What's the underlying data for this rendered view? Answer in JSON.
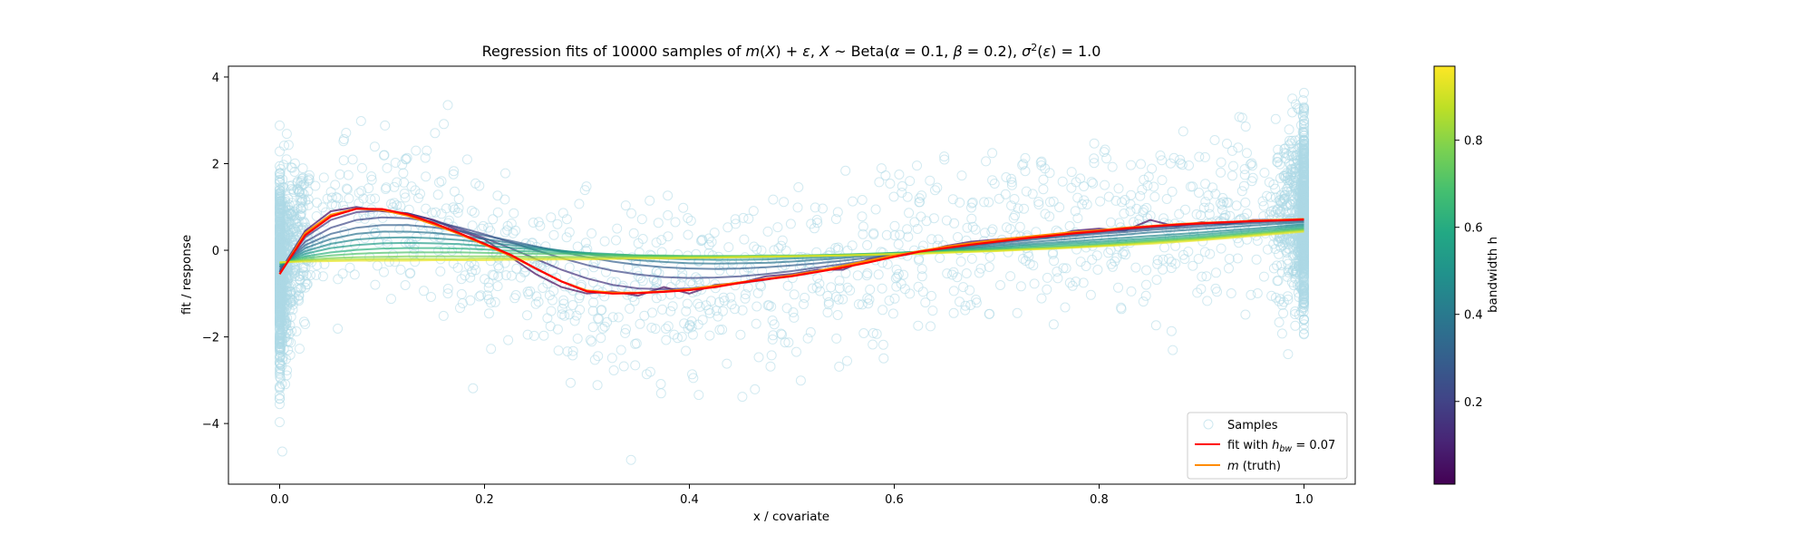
{
  "chart_data": {
    "type": "scatter",
    "title_parts": {
      "t1": "Regression fits of 10000 samples of ",
      "t2": "m",
      "t3": "(",
      "t4": "X",
      "t5": ") + ",
      "t6": "ε",
      "t7": ", ",
      "t8": "X",
      "t9": " ~ Beta(",
      "t10": "α",
      "t11": " = 0.1, ",
      "t12": "β",
      "t13": " = 0.2), ",
      "t14": "σ",
      "t15": "2",
      "t16": "(",
      "t17": "ε",
      "t18": ") = 1.0"
    },
    "xlabel": "x / covariate",
    "ylabel": "fit / response",
    "xlim": [
      -0.05,
      1.05
    ],
    "ylim": [
      -5.4,
      4.25
    ],
    "xticks": [
      0.0,
      0.2,
      0.4,
      0.6,
      0.8,
      1.0
    ],
    "xtick_labels": [
      "0.0",
      "0.2",
      "0.4",
      "0.6",
      "0.8",
      "1.0"
    ],
    "yticks": [
      -4,
      -2,
      0,
      2,
      4
    ],
    "ytick_labels": [
      "−4",
      "−2",
      "0",
      "2",
      "4"
    ],
    "grid": false,
    "legend_position": "lower-right",
    "legend": {
      "samples": "Samples",
      "fit_prefix": "fit with ",
      "fit_h": "h",
      "fit_sub": "bw",
      "fit_suffix": " = 0.07",
      "truth_m": "m",
      "truth_suffix": " (truth)"
    },
    "colorbar": {
      "label": "bandwidth h",
      "colormap": "viridis",
      "range": [
        0.01,
        0.97
      ],
      "ticks": [
        0.2,
        0.4,
        0.6,
        0.8
      ],
      "tick_labels": [
        "0.2",
        "0.4",
        "0.6",
        "0.8"
      ]
    },
    "samples": {
      "count": 10000,
      "distribution": "Beta(0.1, 0.2)",
      "noise_sigma": 1.0,
      "color": "#add8e6"
    },
    "truth": {
      "color": "#ff8c00",
      "x": [
        0.0,
        0.025,
        0.05,
        0.075,
        0.1,
        0.125,
        0.15,
        0.175,
        0.2,
        0.225,
        0.25,
        0.275,
        0.3,
        0.325,
        0.35,
        0.375,
        0.4,
        0.425,
        0.45,
        0.475,
        0.5,
        0.525,
        0.55,
        0.575,
        0.6,
        0.625,
        0.65,
        0.675,
        0.7,
        0.725,
        0.75,
        0.775,
        0.8,
        0.825,
        0.85,
        0.875,
        0.9,
        0.925,
        0.95,
        0.975,
        1.0
      ],
      "y": [
        -0.55,
        0.4,
        0.82,
        0.96,
        0.93,
        0.8,
        0.6,
        0.38,
        0.13,
        -0.12,
        -0.42,
        -0.72,
        -0.93,
        -0.98,
        -0.98,
        -0.95,
        -0.9,
        -0.82,
        -0.74,
        -0.66,
        -0.58,
        -0.48,
        -0.36,
        -0.24,
        -0.12,
        -0.02,
        0.08,
        0.16,
        0.24,
        0.3,
        0.36,
        0.42,
        0.46,
        0.52,
        0.56,
        0.6,
        0.63,
        0.65,
        0.68,
        0.7,
        0.72
      ]
    },
    "best_fit": {
      "color": "#ff0000",
      "bandwidth": 0.07,
      "x": [
        0.0,
        0.025,
        0.05,
        0.075,
        0.1,
        0.125,
        0.15,
        0.175,
        0.2,
        0.225,
        0.25,
        0.275,
        0.3,
        0.325,
        0.35,
        0.375,
        0.4,
        0.425,
        0.45,
        0.475,
        0.5,
        0.525,
        0.55,
        0.575,
        0.6,
        0.625,
        0.65,
        0.675,
        0.7,
        0.725,
        0.75,
        0.775,
        0.8,
        0.825,
        0.85,
        0.875,
        0.9,
        0.925,
        0.95,
        0.975,
        1.0
      ],
      "y": [
        -0.55,
        0.35,
        0.78,
        0.96,
        0.95,
        0.83,
        0.63,
        0.4,
        0.15,
        -0.1,
        -0.42,
        -0.72,
        -0.95,
        -1.0,
        -0.99,
        -0.96,
        -0.92,
        -0.85,
        -0.75,
        -0.67,
        -0.6,
        -0.5,
        -0.4,
        -0.28,
        -0.15,
        -0.03,
        0.05,
        0.13,
        0.2,
        0.27,
        0.33,
        0.39,
        0.44,
        0.5,
        0.55,
        0.59,
        0.62,
        0.65,
        0.67,
        0.69,
        0.71
      ]
    },
    "bandwidth_fits": [
      {
        "h": 0.03,
        "y": [
          -0.5,
          0.45,
          0.9,
          1.0,
          0.9,
          0.85,
          0.7,
          0.45,
          0.25,
          -0.15,
          -0.55,
          -0.85,
          -1.0,
          -0.95,
          -1.05,
          -0.85,
          -1.0,
          -0.8,
          -0.75,
          -0.6,
          -0.55,
          -0.45,
          -0.45,
          -0.2,
          -0.1,
          -0.05,
          0.1,
          0.2,
          0.25,
          0.3,
          0.3,
          0.45,
          0.5,
          0.45,
          0.7,
          0.55,
          0.65,
          0.6,
          0.7,
          0.7,
          0.72
        ]
      },
      {
        "h": 0.15,
        "y": [
          -0.5,
          0.3,
          0.7,
          0.88,
          0.92,
          0.85,
          0.7,
          0.5,
          0.28,
          0.05,
          -0.2,
          -0.45,
          -0.65,
          -0.8,
          -0.88,
          -0.9,
          -0.88,
          -0.83,
          -0.76,
          -0.68,
          -0.58,
          -0.48,
          -0.37,
          -0.26,
          -0.15,
          -0.05,
          0.05,
          0.13,
          0.2,
          0.27,
          0.33,
          0.38,
          0.43,
          0.48,
          0.53,
          0.57,
          0.61,
          0.64,
          0.67,
          0.69,
          0.71
        ]
      },
      {
        "h": 0.22,
        "y": [
          -0.45,
          0.2,
          0.52,
          0.7,
          0.76,
          0.74,
          0.66,
          0.53,
          0.37,
          0.19,
          0.0,
          -0.18,
          -0.34,
          -0.47,
          -0.56,
          -0.62,
          -0.64,
          -0.63,
          -0.6,
          -0.55,
          -0.48,
          -0.4,
          -0.32,
          -0.23,
          -0.14,
          -0.05,
          0.03,
          0.11,
          0.18,
          0.25,
          0.31,
          0.36,
          0.41,
          0.46,
          0.51,
          0.55,
          0.59,
          0.62,
          0.65,
          0.68,
          0.7
        ]
      },
      {
        "h": 0.3,
        "y": [
          -0.4,
          0.12,
          0.38,
          0.52,
          0.58,
          0.58,
          0.53,
          0.45,
          0.34,
          0.22,
          0.09,
          -0.04,
          -0.16,
          -0.26,
          -0.34,
          -0.39,
          -0.42,
          -0.43,
          -0.42,
          -0.39,
          -0.35,
          -0.3,
          -0.24,
          -0.17,
          -0.1,
          -0.03,
          0.04,
          0.1,
          0.16,
          0.22,
          0.28,
          0.33,
          0.38,
          0.42,
          0.47,
          0.51,
          0.55,
          0.59,
          0.62,
          0.65,
          0.68
        ]
      },
      {
        "h": 0.38,
        "y": [
          -0.38,
          0.05,
          0.26,
          0.38,
          0.43,
          0.43,
          0.4,
          0.34,
          0.26,
          0.17,
          0.08,
          -0.01,
          -0.09,
          -0.17,
          -0.23,
          -0.27,
          -0.3,
          -0.31,
          -0.3,
          -0.29,
          -0.26,
          -0.22,
          -0.18,
          -0.13,
          -0.08,
          -0.03,
          0.02,
          0.07,
          0.12,
          0.17,
          0.22,
          0.27,
          0.32,
          0.36,
          0.41,
          0.45,
          0.49,
          0.53,
          0.57,
          0.61,
          0.65
        ]
      },
      {
        "h": 0.46,
        "y": [
          -0.35,
          -0.02,
          0.15,
          0.25,
          0.29,
          0.3,
          0.28,
          0.24,
          0.18,
          0.12,
          0.05,
          -0.01,
          -0.07,
          -0.12,
          -0.16,
          -0.19,
          -0.21,
          -0.22,
          -0.22,
          -0.21,
          -0.19,
          -0.17,
          -0.14,
          -0.11,
          -0.07,
          -0.03,
          0.01,
          0.05,
          0.09,
          0.13,
          0.17,
          0.21,
          0.25,
          0.29,
          0.33,
          0.37,
          0.41,
          0.46,
          0.5,
          0.55,
          0.6
        ]
      },
      {
        "h": 0.54,
        "y": [
          -0.33,
          -0.08,
          0.05,
          0.12,
          0.16,
          0.17,
          0.16,
          0.14,
          0.1,
          0.06,
          0.02,
          -0.02,
          -0.06,
          -0.09,
          -0.12,
          -0.14,
          -0.15,
          -0.16,
          -0.16,
          -0.16,
          -0.15,
          -0.13,
          -0.11,
          -0.09,
          -0.06,
          -0.03,
          0.0,
          0.03,
          0.06,
          0.1,
          0.13,
          0.17,
          0.2,
          0.24,
          0.28,
          0.32,
          0.36,
          0.41,
          0.46,
          0.51,
          0.56
        ]
      },
      {
        "h": 0.62,
        "y": [
          -0.31,
          -0.14,
          -0.05,
          0.01,
          0.04,
          0.05,
          0.05,
          0.04,
          0.02,
          -0.01,
          -0.03,
          -0.06,
          -0.08,
          -0.1,
          -0.12,
          -0.13,
          -0.14,
          -0.14,
          -0.14,
          -0.14,
          -0.13,
          -0.12,
          -0.1,
          -0.08,
          -0.06,
          -0.04,
          -0.01,
          0.01,
          0.04,
          0.07,
          0.1,
          0.13,
          0.16,
          0.2,
          0.24,
          0.28,
          0.32,
          0.37,
          0.42,
          0.47,
          0.52
        ]
      },
      {
        "h": 0.7,
        "y": [
          -0.3,
          -0.18,
          -0.12,
          -0.08,
          -0.06,
          -0.05,
          -0.05,
          -0.05,
          -0.06,
          -0.07,
          -0.08,
          -0.09,
          -0.1,
          -0.11,
          -0.12,
          -0.12,
          -0.13,
          -0.13,
          -0.13,
          -0.12,
          -0.12,
          -0.11,
          -0.1,
          -0.08,
          -0.07,
          -0.05,
          -0.03,
          -0.01,
          0.02,
          0.04,
          0.07,
          0.1,
          0.13,
          0.17,
          0.21,
          0.25,
          0.29,
          0.34,
          0.39,
          0.44,
          0.49
        ]
      },
      {
        "h": 0.78,
        "y": [
          -0.29,
          -0.22,
          -0.18,
          -0.16,
          -0.15,
          -0.14,
          -0.14,
          -0.14,
          -0.14,
          -0.14,
          -0.15,
          -0.15,
          -0.15,
          -0.15,
          -0.15,
          -0.15,
          -0.15,
          -0.15,
          -0.14,
          -0.14,
          -0.13,
          -0.12,
          -0.11,
          -0.1,
          -0.08,
          -0.06,
          -0.04,
          -0.02,
          0.0,
          0.03,
          0.05,
          0.08,
          0.11,
          0.15,
          0.19,
          0.23,
          0.27,
          0.32,
          0.37,
          0.42,
          0.47
        ]
      },
      {
        "h": 0.86,
        "y": [
          -0.28,
          -0.24,
          -0.22,
          -0.21,
          -0.2,
          -0.2,
          -0.2,
          -0.2,
          -0.19,
          -0.19,
          -0.19,
          -0.18,
          -0.18,
          -0.18,
          -0.17,
          -0.17,
          -0.16,
          -0.16,
          -0.15,
          -0.14,
          -0.14,
          -0.13,
          -0.12,
          -0.1,
          -0.09,
          -0.07,
          -0.05,
          -0.03,
          -0.01,
          0.02,
          0.04,
          0.07,
          0.1,
          0.13,
          0.17,
          0.21,
          0.25,
          0.3,
          0.35,
          0.4,
          0.45
        ]
      },
      {
        "h": 0.94,
        "y": [
          -0.28,
          -0.26,
          -0.25,
          -0.24,
          -0.24,
          -0.24,
          -0.23,
          -0.23,
          -0.23,
          -0.22,
          -0.22,
          -0.21,
          -0.21,
          -0.2,
          -0.19,
          -0.19,
          -0.18,
          -0.17,
          -0.16,
          -0.15,
          -0.14,
          -0.13,
          -0.12,
          -0.11,
          -0.09,
          -0.08,
          -0.06,
          -0.04,
          -0.02,
          0.01,
          0.03,
          0.06,
          0.09,
          0.12,
          0.15,
          0.19,
          0.23,
          0.28,
          0.33,
          0.38,
          0.43
        ]
      }
    ]
  }
}
